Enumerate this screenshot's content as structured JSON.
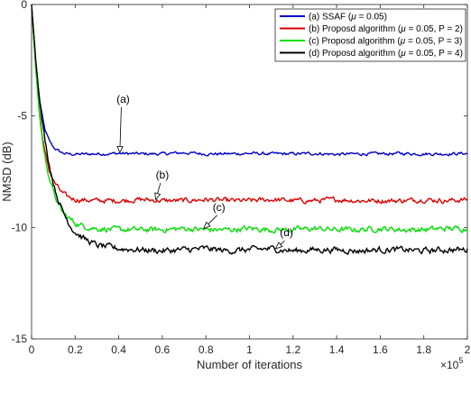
{
  "chart_data": {
    "type": "line",
    "title": "",
    "xlabel": "Number of iterations",
    "ylabel": "NMSD (dB)",
    "xlim": [
      0,
      2
    ],
    "ylim": [
      -15,
      0
    ],
    "x_exponent_label": "×10^5",
    "x_exponent_base": "×10",
    "x_exponent_power": "5",
    "xticks": [
      "0",
      "0.2",
      "0.4",
      "0.6",
      "0.8",
      "1",
      "1.2",
      "1.4",
      "1.6",
      "1.8",
      "2"
    ],
    "yticks": [
      "0",
      "-5",
      "-10",
      "-15"
    ],
    "grid": false,
    "legend_position": "top-right",
    "series": [
      {
        "name": "(a) SSAF (μ = 0.05)",
        "legend": {
          "prefix": "(a) SSAF (",
          "mu": "μ",
          "rest": " = 0.05)"
        },
        "color": "#0000cc",
        "x": [
          0,
          0.02,
          0.04,
          0.06,
          0.08,
          0.1,
          0.12,
          0.14,
          0.16,
          0.2,
          0.3,
          0.4,
          0.5,
          0.6,
          0.7,
          0.8,
          0.9,
          1.0,
          1.1,
          1.2,
          1.3,
          1.4,
          1.5,
          1.6,
          1.7,
          1.8,
          1.9,
          2.0
        ],
        "y": [
          0,
          -2.8,
          -4.5,
          -5.6,
          -6.1,
          -6.4,
          -6.55,
          -6.65,
          -6.7,
          -6.72,
          -6.7,
          -6.68,
          -6.7,
          -6.7,
          -6.65,
          -6.7,
          -6.7,
          -6.68,
          -6.7,
          -6.7,
          -6.68,
          -6.72,
          -6.7,
          -6.7,
          -6.68,
          -6.7,
          -6.7,
          -6.68
        ],
        "noise": 0.05,
        "annotation": "(a)"
      },
      {
        "name": "(b) Proposd algorithm (μ = 0.05, P = 2)",
        "legend": {
          "prefix": "(b) Proposd algorithm (",
          "mu": "μ",
          "rest": " = 0.05, P = 2)"
        },
        "color": "#dd0000",
        "x": [
          0,
          0.02,
          0.04,
          0.06,
          0.08,
          0.1,
          0.12,
          0.14,
          0.16,
          0.2,
          0.3,
          0.4,
          0.5,
          0.6,
          0.7,
          0.8,
          0.9,
          1.0,
          1.1,
          1.2,
          1.3,
          1.4,
          1.5,
          1.6,
          1.7,
          1.8,
          1.9,
          2.0
        ],
        "y": [
          0,
          -3.0,
          -5.2,
          -6.6,
          -7.4,
          -7.9,
          -8.2,
          -8.45,
          -8.6,
          -8.75,
          -8.8,
          -8.8,
          -8.75,
          -8.8,
          -8.8,
          -8.75,
          -8.8,
          -8.8,
          -8.75,
          -8.8,
          -8.8,
          -8.75,
          -8.8,
          -8.8,
          -8.8,
          -8.75,
          -8.8,
          -8.75
        ],
        "noise": 0.08,
        "annotation": "(b)"
      },
      {
        "name": "(c) Proposd algorithm (μ = 0.05, P = 3)",
        "legend": {
          "prefix": "(c) Proposd algorithm (",
          "mu": "μ",
          "rest": " = 0.05, P = 3)"
        },
        "color": "#00e000",
        "x": [
          0,
          0.02,
          0.04,
          0.06,
          0.08,
          0.1,
          0.12,
          0.14,
          0.16,
          0.2,
          0.24,
          0.3,
          0.4,
          0.5,
          0.6,
          0.7,
          0.8,
          0.9,
          1.0,
          1.1,
          1.2,
          1.3,
          1.4,
          1.5,
          1.6,
          1.7,
          1.8,
          1.9,
          2.0
        ],
        "y": [
          0,
          -3.0,
          -5.3,
          -6.8,
          -7.7,
          -8.4,
          -8.9,
          -9.3,
          -9.5,
          -9.8,
          -9.95,
          -10.05,
          -10.1,
          -10.1,
          -10.1,
          -10.05,
          -10.1,
          -10.1,
          -10.05,
          -10.1,
          -10.1,
          -10.05,
          -10.1,
          -10.1,
          -10.05,
          -10.1,
          -10.1,
          -10.05,
          -10.05
        ],
        "noise": 0.09,
        "annotation": "(c)"
      },
      {
        "name": "(d) Proposd algorithm (μ = 0.05, P = 4)",
        "legend": {
          "prefix": "(d) Proposd algorithm (",
          "mu": "μ",
          "rest": " = 0.05, P = 4)"
        },
        "color": "#000000",
        "x": [
          0,
          0.02,
          0.04,
          0.06,
          0.08,
          0.1,
          0.12,
          0.14,
          0.16,
          0.18,
          0.2,
          0.24,
          0.3,
          0.4,
          0.5,
          0.6,
          0.7,
          0.8,
          0.9,
          1.0,
          1.1,
          1.2,
          1.3,
          1.4,
          1.5,
          1.6,
          1.7,
          1.8,
          1.9,
          2.0
        ],
        "y": [
          0,
          -2.6,
          -4.6,
          -6.0,
          -7.1,
          -8.0,
          -8.7,
          -9.2,
          -9.6,
          -9.95,
          -10.2,
          -10.5,
          -10.8,
          -10.95,
          -11.0,
          -11.05,
          -11.0,
          -10.95,
          -11.05,
          -11.0,
          -10.95,
          -11.05,
          -11.0,
          -11.0,
          -11.05,
          -11.0,
          -11.0,
          -11.05,
          -11.0,
          -11.0
        ],
        "noise": 0.1,
        "annotation": "(d)"
      }
    ],
    "annotations": [
      {
        "label": "(a)",
        "text_x": 0.42,
        "text_y": -4.4,
        "arrow_x": 0.405,
        "arrow_y": -6.65
      },
      {
        "label": "(b)",
        "text_x": 0.6,
        "text_y": -7.8,
        "arrow_x": 0.57,
        "arrow_y": -8.75
      },
      {
        "label": "(c)",
        "text_x": 0.86,
        "text_y": -9.25,
        "arrow_x": 0.79,
        "arrow_y": -10.05
      },
      {
        "label": "(d)",
        "text_x": 1.17,
        "text_y": -10.4,
        "arrow_x": 1.12,
        "arrow_y": -10.95
      }
    ]
  }
}
